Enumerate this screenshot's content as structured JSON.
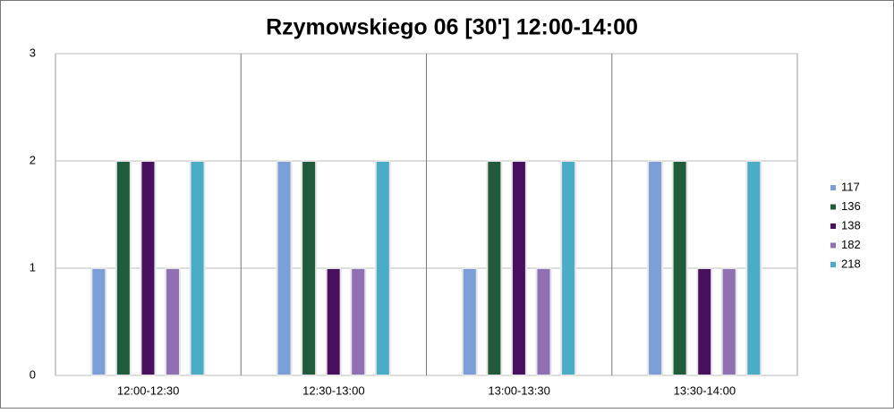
{
  "chart_data": {
    "type": "bar",
    "title": "Rzymowskiego  06 [30']    12:00-14:00",
    "categories": [
      "12:00-12:30",
      "12:30-13:00",
      "13:00-13:30",
      "13:30-14:00"
    ],
    "series": [
      {
        "name": "117",
        "color": "#7b9fd6",
        "values": [
          1,
          2,
          1,
          2
        ]
      },
      {
        "name": "136",
        "color": "#1f5b3c",
        "values": [
          2,
          2,
          2,
          2
        ]
      },
      {
        "name": "138",
        "color": "#4a1060",
        "values": [
          2,
          1,
          2,
          1
        ]
      },
      {
        "name": "182",
        "color": "#8f70b2",
        "values": [
          1,
          1,
          1,
          1
        ]
      },
      {
        "name": "218",
        "color": "#4bacc6",
        "values": [
          2,
          2,
          2,
          2
        ]
      }
    ],
    "ylim": [
      0,
      3
    ],
    "yticks": [
      0,
      1,
      2,
      3
    ],
    "grid": true,
    "legend": "right"
  }
}
